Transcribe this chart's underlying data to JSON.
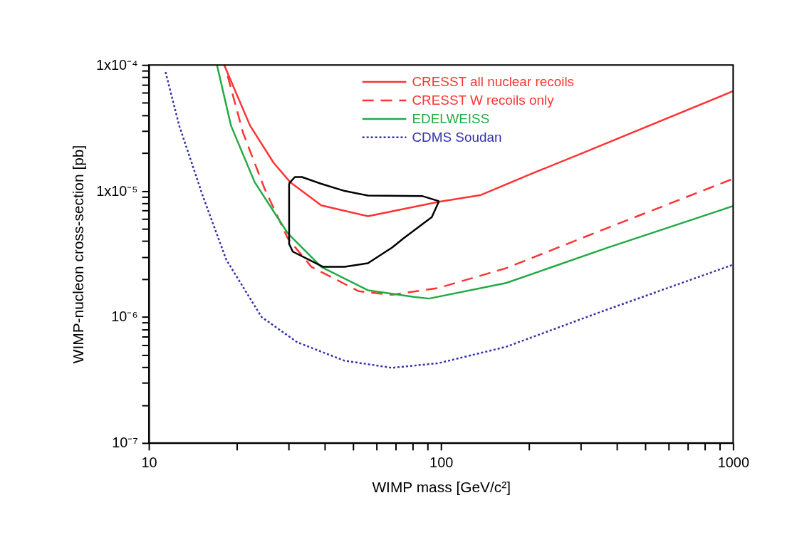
{
  "chart_data": {
    "type": "line",
    "xlabel": "WIMP mass [GeV/c²]",
    "ylabel": "WIMP-nucleon cross-section [pb]",
    "log": "xy",
    "xlim": [
      10,
      1000
    ],
    "ylim": [
      1e-07,
      0.0001
    ],
    "xticks": [
      10,
      {
        "value": 20,
        "label": null
      },
      {
        "value": 30,
        "label": null
      },
      {
        "value": 40,
        "label": null
      },
      {
        "value": 50,
        "label": null
      },
      {
        "value": 60,
        "label": null
      },
      {
        "value": 70,
        "label": null
      },
      {
        "value": 80,
        "label": null
      },
      {
        "value": 90,
        "label": null
      },
      100,
      {
        "value": 200,
        "label": null
      },
      {
        "value": 300,
        "label": null
      },
      {
        "value": 400,
        "label": null
      },
      {
        "value": 500,
        "label": null
      },
      {
        "value": 600,
        "label": null
      },
      {
        "value": 700,
        "label": null
      },
      {
        "value": 800,
        "label": null
      },
      {
        "value": 900,
        "label": null
      },
      1000
    ],
    "yticks": [
      {
        "value": 1e-07,
        "label": "10⁻⁷"
      },
      {
        "value": 2e-07,
        "label": null
      },
      {
        "value": 3e-07,
        "label": null
      },
      {
        "value": 4e-07,
        "label": null
      },
      {
        "value": 5e-07,
        "label": null
      },
      {
        "value": 6e-07,
        "label": null
      },
      {
        "value": 7e-07,
        "label": null
      },
      {
        "value": 8e-07,
        "label": null
      },
      {
        "value": 9e-07,
        "label": null
      },
      {
        "value": 1e-06,
        "label": "10⁻⁶"
      },
      {
        "value": 2e-06,
        "label": null
      },
      {
        "value": 3e-06,
        "label": null
      },
      {
        "value": 4e-06,
        "label": null
      },
      {
        "value": 5e-06,
        "label": null
      },
      {
        "value": 6e-06,
        "label": null
      },
      {
        "value": 7e-06,
        "label": null
      },
      {
        "value": 8e-06,
        "label": null
      },
      {
        "value": 9e-06,
        "label": null
      },
      {
        "value": 1e-05,
        "label": "1x10⁻⁵"
      },
      {
        "value": 2e-05,
        "label": null
      },
      {
        "value": 3e-05,
        "label": null
      },
      {
        "value": 4e-05,
        "label": null
      },
      {
        "value": 5e-05,
        "label": null
      },
      {
        "value": 6e-05,
        "label": null
      },
      {
        "value": 7e-05,
        "label": null
      },
      {
        "value": 8e-05,
        "label": null
      },
      {
        "value": 9e-05,
        "label": null
      },
      {
        "value": 0.0001,
        "label": "1x10⁻⁴"
      }
    ],
    "grid": false,
    "legend": "top right",
    "marker": "none",
    "series": [
      {
        "name": "CRESST all nuclear recoils",
        "color": "#ff3333",
        "line_style": "solid",
        "x": [
          18.1,
          22.2,
          26.7,
          30.4,
          38.9,
          56.2,
          98.4,
          137,
          204,
          305,
          1000
        ],
        "values": [
          0.0001,
          3.3e-05,
          1.68e-05,
          1.18e-05,
          7.7e-06,
          6.3e-06,
          8.2e-06,
          9.3e-06,
          1.37e-05,
          2e-05,
          6.2e-05
        ]
      },
      {
        "name": "CRESST W recoils only",
        "color": "#ff3333",
        "line_style": "dashed",
        "x": [
          18.6,
          21.0,
          24.9,
          29.9,
          36,
          52.3,
          68,
          98,
          167,
          372,
          1000
        ],
        "values": [
          8.2e-05,
          2.9e-05,
          1.04e-05,
          4.2e-06,
          2.5e-06,
          1.6e-06,
          1.5e-06,
          1.7e-06,
          2.44e-06,
          5.1e-06,
          1.25e-05
        ]
      },
      {
        "name": "EDELWEISS",
        "color": "#22aa44",
        "line_style": "solid",
        "x": [
          17.1,
          19.1,
          23.0,
          29.9,
          38.9,
          56.2,
          81.5,
          91,
          167,
          372,
          1000
        ],
        "values": [
          0.0001,
          3.3e-05,
          1.18e-05,
          4.6e-06,
          2.5e-06,
          1.63e-06,
          1.44e-06,
          1.4e-06,
          1.86e-06,
          3.55e-06,
          7.6e-06
        ]
      },
      {
        "name": "CDMS Soudan",
        "color": "#3333aa",
        "line_style": "dotted",
        "x": [
          11.4,
          12.7,
          15.3,
          18.4,
          24.3,
          32.2,
          46.7,
          68,
          98,
          167,
          372,
          1000
        ],
        "values": [
          8.8e-05,
          3.3e-05,
          9.1e-06,
          2.85e-06,
          1e-06,
          6.3e-07,
          4.5e-07,
          3.95e-07,
          4.3e-07,
          5.8e-07,
          1.15e-06,
          2.6e-06
        ]
      },
      {
        "color": "#000000",
        "line_style": "solid",
        "x": [
          30.2,
          31.6,
          33.4,
          38.9,
          46.8,
          56.2,
          86.5,
          98.4
        ],
        "values": [
          1.15e-05,
          1.29e-05,
          1.29e-05,
          1.14e-05,
          1e-05,
          9.2e-06,
          9.1e-06,
          8.3e-06
        ]
      },
      {
        "color": "#000000",
        "line_style": "solid",
        "x": [
          30.2,
          30.2,
          31.1,
          39.5,
          46.8,
          56.2,
          68,
          74.3,
          93,
          98.4
        ],
        "values": [
          1.15e-05,
          3.8e-06,
          3.3e-06,
          2.5e-06,
          2.5e-06,
          2.67e-06,
          3.56e-06,
          4.2e-06,
          6.2e-06,
          8.3e-06
        ]
      }
    ]
  }
}
